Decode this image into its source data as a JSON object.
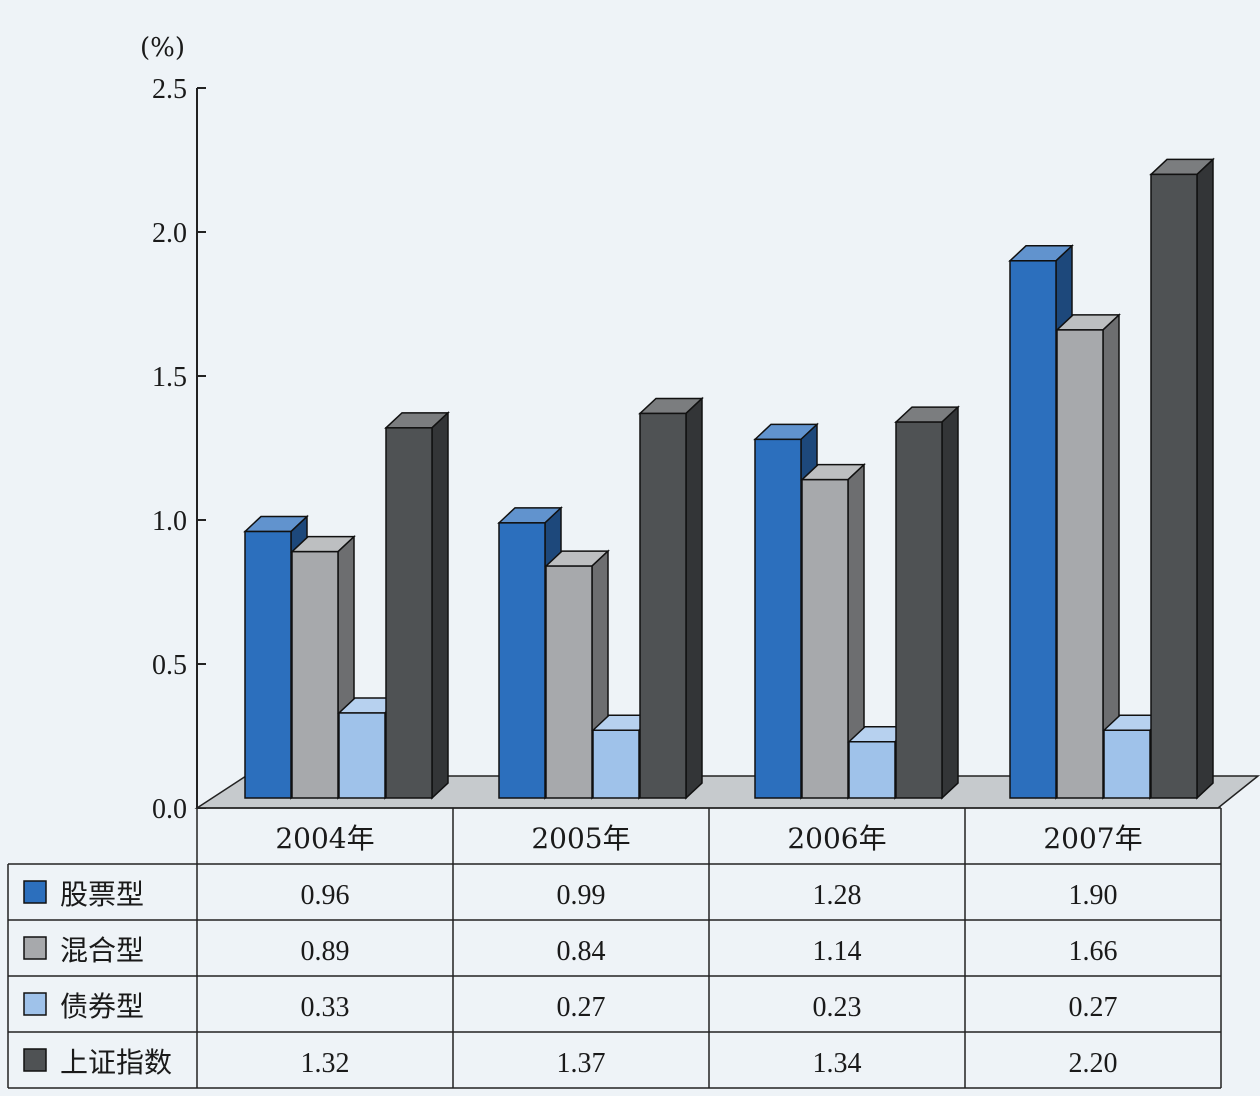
{
  "chart_data": {
    "type": "bar",
    "unit": "(%)",
    "categories": [
      "2004年",
      "2005年",
      "2006年",
      "2007年"
    ],
    "yticks": [
      "0.0",
      "0.5",
      "1.0",
      "1.5",
      "2.0",
      "2.5"
    ],
    "ylim": [
      0,
      2.5
    ],
    "legend": "table-left",
    "series": [
      {
        "name": "股票型",
        "color": "#2c6fbd",
        "values": [
          0.96,
          0.99,
          1.28,
          1.9
        ],
        "labels": [
          "0.96",
          "0.99",
          "1.28",
          "1.90"
        ]
      },
      {
        "name": "混合型",
        "color": "#a7a9ac",
        "values": [
          0.89,
          0.84,
          1.14,
          1.66
        ],
        "labels": [
          "0.89",
          "0.84",
          "1.14",
          "1.66"
        ]
      },
      {
        "name": "债券型",
        "color": "#9fc2ea",
        "values": [
          0.33,
          0.27,
          0.23,
          0.27
        ],
        "labels": [
          "0.33",
          "0.27",
          "0.23",
          "0.27"
        ]
      },
      {
        "name": "上证指数",
        "color": "#4f5254",
        "values": [
          1.32,
          1.37,
          1.34,
          2.2
        ],
        "labels": [
          "1.32",
          "1.37",
          "1.34",
          "2.20"
        ]
      }
    ]
  }
}
